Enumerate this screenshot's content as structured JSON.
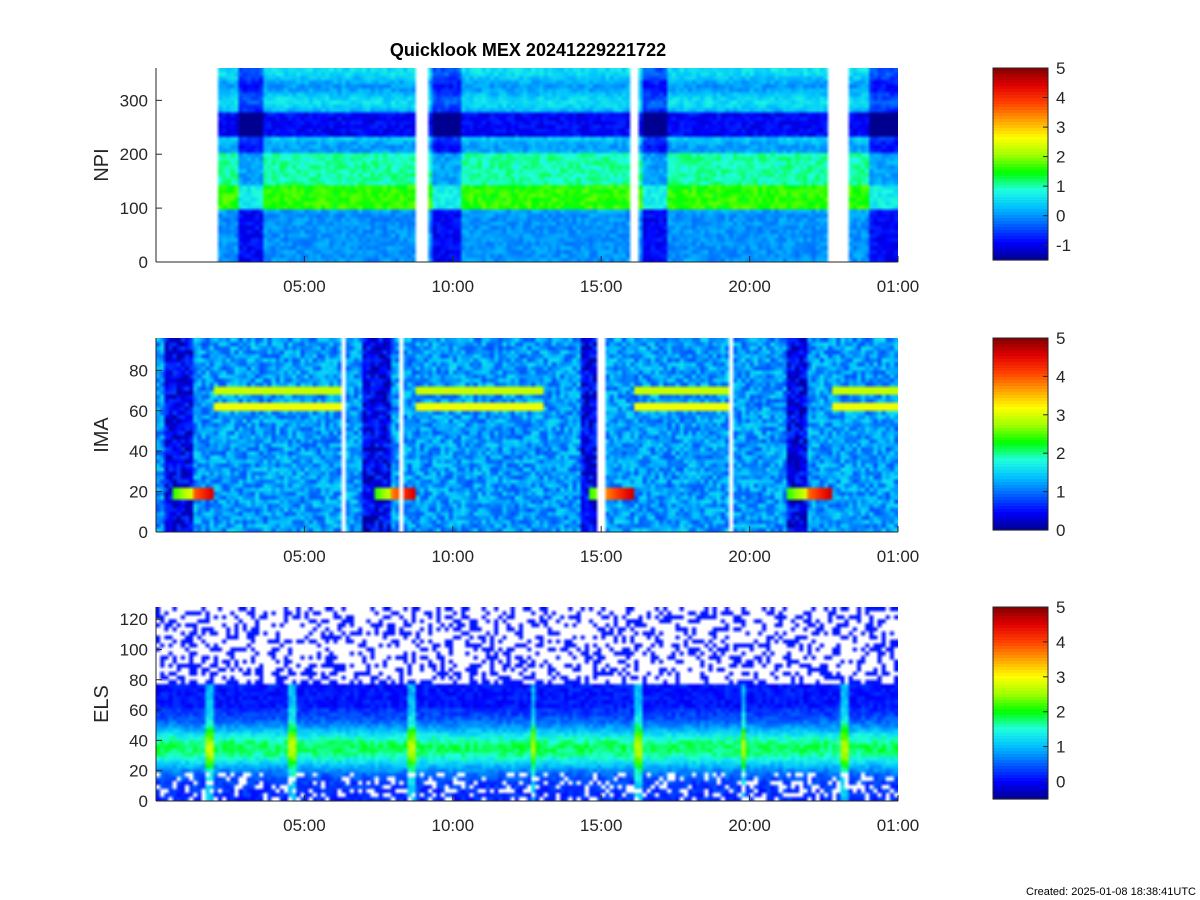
{
  "figure": {
    "title": "Quicklook MEX 20241229221722",
    "created": "Created: 2025-01-08 18:38:41UTC",
    "colormap": [
      "#000090",
      "#0000ff",
      "#0060ff",
      "#00c0ff",
      "#20ffe0",
      "#00ff00",
      "#a0ff00",
      "#ffff00",
      "#ffa000",
      "#ff4000",
      "#e00000",
      "#800000"
    ]
  },
  "chart_data": [
    {
      "type": "heatmap",
      "name": "NPI",
      "ylabel": "NPI",
      "x_ticks": [
        "05:00",
        "10:00",
        "15:00",
        "20:00",
        "01:00"
      ],
      "y_ticks": [
        0,
        100,
        200,
        300
      ],
      "ylim": [
        0,
        360
      ],
      "cbar_ticks": [
        -1,
        0,
        1,
        2,
        3,
        4,
        5
      ],
      "clim": [
        -1.5,
        5
      ],
      "data_windows_hours": [
        [
          2.1,
          8.8
        ],
        [
          9.15,
          16.0
        ],
        [
          16.3,
          22.6
        ],
        [
          23.3,
          25.0
        ]
      ],
      "grid": false
    },
    {
      "type": "heatmap",
      "name": "IMA",
      "ylabel": "IMA",
      "x_ticks": [
        "05:00",
        "10:00",
        "15:00",
        "20:00",
        "01:00"
      ],
      "y_ticks": [
        0,
        20,
        40,
        60,
        80
      ],
      "ylim": [
        0,
        96
      ],
      "cbar_ticks": [
        0,
        1,
        2,
        3,
        4,
        5
      ],
      "clim": [
        0,
        5
      ],
      "gaps_hours": [
        6.3,
        8.3,
        15.0,
        19.4
      ],
      "grid": false
    },
    {
      "type": "heatmap",
      "name": "ELS",
      "ylabel": "ELS",
      "x_ticks": [
        "05:00",
        "10:00",
        "15:00",
        "20:00",
        "01:00"
      ],
      "y_ticks": [
        0,
        20,
        40,
        60,
        80,
        100,
        120
      ],
      "ylim": [
        0,
        128
      ],
      "cbar_ticks": [
        0,
        1,
        2,
        3,
        4,
        5
      ],
      "clim": [
        -0.5,
        5
      ],
      "grid": false
    }
  ]
}
